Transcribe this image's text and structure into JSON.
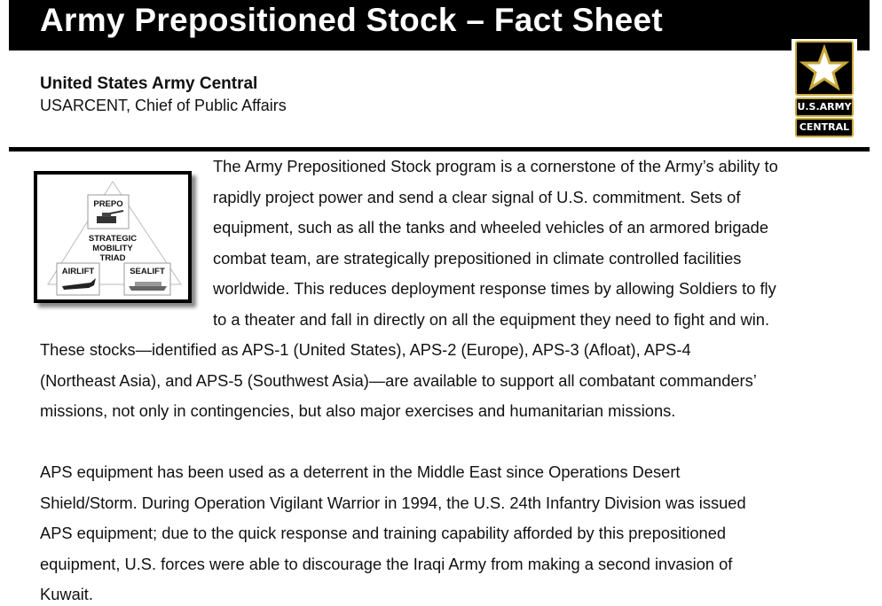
{
  "header": {
    "title": "Army Prepositioned Stock – Fact Sheet",
    "org": "United States Army Central",
    "dept": "USARCENT, Chief of Public Affairs"
  },
  "logo": {
    "line1": "U.S.ARMY",
    "line2": "CENTRAL",
    "star_color": "#c8a93a"
  },
  "figure": {
    "top": "PREPO",
    "center": [
      "STRATEGIC",
      "MOBILITY",
      "TRIAD"
    ],
    "left": "AIRLIFT",
    "right": "SEALIFT"
  },
  "paragraphs": [
    [
      "The Army Prepositioned Stock program is a cornerstone of the Army’s ability to",
      "rapidly project power and send a clear signal of U.S. commitment. Sets of",
      "equipment, such as all the tanks and wheeled vehicles of an armored brigade",
      "combat team, are strategically prepositioned in climate controlled facilities",
      "worldwide. This reduces deployment response times by allowing Soldiers to fly",
      "to a theater and fall in directly on all the equipment they need to fight and win.",
      "These stocks—identified as APS-1 (United States), APS-2 (Europe), APS-3 (Afloat), APS-4",
      "(Northeast Asia), and APS-5 (Southwest Asia)—are available to support all combatant commanders’",
      "missions, not only in contingencies, but also major exercises and humanitarian missions."
    ],
    [
      "APS equipment has been used as a deterrent in the Middle East since Operations Desert",
      "Shield/Storm. During Operation Vigilant Warrior in 1994, the U.S. 24th Infantry Division was issued",
      "APS equipment; due to the quick response and training capability afforded by this prepositioned",
      "equipment, U.S. forces were able to discourage the Iraqi Army from making a second invasion of",
      "Kuwait."
    ]
  ]
}
